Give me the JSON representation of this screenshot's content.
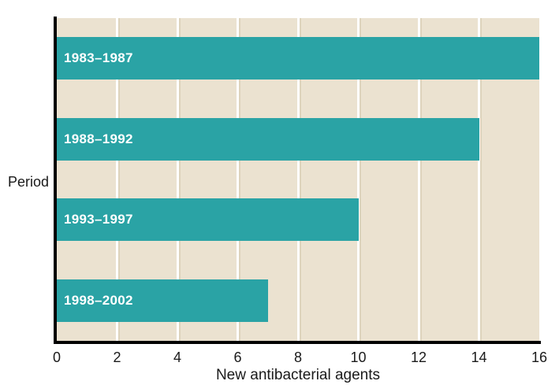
{
  "chart_data": {
    "type": "bar",
    "orientation": "horizontal",
    "categories": [
      "1983–1987",
      "1988–1992",
      "1993–1997",
      "1998–2002"
    ],
    "values": [
      16,
      14,
      10,
      7
    ],
    "title": "",
    "xlabel": "New antibacterial agents",
    "ylabel": "Period",
    "xlim": [
      0,
      16
    ],
    "xticks": [
      0,
      2,
      4,
      6,
      8,
      10,
      12,
      14,
      16
    ],
    "grid": "vertical gridlines on, drawn behind bars",
    "legend": "none",
    "colors": {
      "bar": "#2AA3A5",
      "bar_label_text": "#FFFFFF",
      "plot_background": "#EBE2D0",
      "gridline": "#FFFFFF",
      "gridline_shadow": "#DDD3BC",
      "axis_line": "#000000",
      "text": "#1A1A1A",
      "page_background": "#FFFFFF"
    }
  }
}
